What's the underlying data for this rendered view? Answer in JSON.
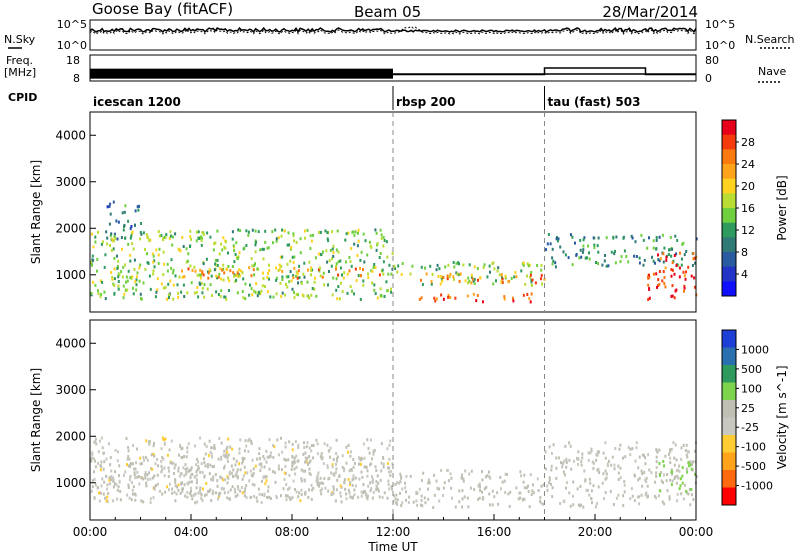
{
  "header": {
    "station": "Goose Bay (fitACF)",
    "beam": "Beam 05",
    "date": "28/Mar/2014"
  },
  "top_panels": {
    "nsky_label": "N.Sky",
    "nsky_ticks": [
      "10^5",
      "10^0"
    ],
    "nsearch_ticks": [
      "10^5",
      "10^0"
    ],
    "nsearch_label": "N.Search",
    "freq_label": "Freq.",
    "freq_unit": "[MHz]",
    "freq_ticks": [
      "18",
      "8"
    ],
    "nave_ticks": [
      "80",
      "0"
    ],
    "nave_label": "Nave",
    "cpid_label": "CPID",
    "cpid_modes": [
      {
        "label": "icescan 1200",
        "start_hour": 0
      },
      {
        "label": "rbsp 200",
        "start_hour": 12
      },
      {
        "label": "tau (fast) 503",
        "start_hour": 18
      }
    ]
  },
  "x_axis": {
    "title": "Time UT",
    "ticks": [
      "00:00",
      "04:00",
      "08:00",
      "12:00",
      "16:00",
      "20:00",
      "00:00"
    ],
    "tick_hours": [
      0,
      4,
      8,
      12,
      16,
      20,
      24
    ]
  },
  "y_axis": {
    "title": "Slant Range [km]",
    "ticks": [
      "1000",
      "2000",
      "3000",
      "4000"
    ],
    "tick_values": [
      1000,
      2000,
      3000,
      4000
    ],
    "range": [
      200,
      4500
    ]
  },
  "power_colorbar": {
    "title": "Power [dB]",
    "labels": [
      "28",
      "24",
      "20",
      "16",
      "12",
      "8",
      "4"
    ],
    "colors": [
      "#e8001a",
      "#f53a0c",
      "#fb7a10",
      "#ffa31a",
      "#ffd21f",
      "#b9dd33",
      "#6fcf3f",
      "#2e9a5e",
      "#2f7a74",
      "#2a5aa0",
      "#2233c8",
      "#1010ff"
    ]
  },
  "velocity_colorbar": {
    "title": "Velocity [m s^-1]",
    "labels": [
      "1000",
      "500",
      "100",
      "25",
      "-25",
      "-100",
      "-500",
      "-1000"
    ],
    "colors": [
      "#1d3fd6",
      "#2a6fae",
      "#2e9a5e",
      "#7dd34c",
      "#bfbfb3",
      "#c8c8c0",
      "#ffcc33",
      "#ffa31a",
      "#ff6a10",
      "#ff0000"
    ]
  },
  "chart_data": {
    "type": "heatmap",
    "title": "Goose Bay (fitACF)",
    "xlabel": "Time UT",
    "ylabel": "Slant Range [km]",
    "xlim_hours": [
      0,
      24
    ],
    "ylim_km": [
      200,
      4500
    ],
    "mode_boundaries_hours": [
      12,
      18
    ],
    "frequency_MHz": [
      {
        "start_hour": 0,
        "end_hour": 12,
        "value": 11.5
      },
      {
        "start_hour": 12,
        "end_hour": 24,
        "value": 10.3
      }
    ],
    "nave": [
      {
        "start_hour": 0,
        "end_hour": 12,
        "value": 20
      },
      {
        "start_hour": 12,
        "end_hour": 18,
        "value": 20
      },
      {
        "start_hour": 18,
        "end_hour": 22,
        "value": 40
      },
      {
        "start_hour": 22,
        "end_hour": 24,
        "value": 20
      }
    ],
    "power_panel": {
      "quantity": "Power [dB]",
      "scale_dB": [
        0,
        30
      ],
      "echo_regions": [
        {
          "t0": 0.0,
          "t1": 12.0,
          "r0": 500,
          "r1": 2000,
          "power_dB": 14
        },
        {
          "t0": 3.0,
          "t1": 11.5,
          "r0": 950,
          "r1": 1200,
          "power_dB": 22
        },
        {
          "t0": 0.5,
          "t1": 2.0,
          "r0": 1800,
          "r1": 2600,
          "power_dB": 8
        },
        {
          "t0": 12.0,
          "t1": 18.0,
          "r0": 800,
          "r1": 1300,
          "power_dB": 14
        },
        {
          "t0": 13.0,
          "t1": 18.0,
          "r0": 850,
          "r1": 1050,
          "power_dB": 24
        },
        {
          "t0": 13.0,
          "t1": 18.0,
          "r0": 450,
          "r1": 620,
          "power_dB": 26
        },
        {
          "t0": 18.0,
          "t1": 24.0,
          "r0": 1200,
          "r1": 1900,
          "power_dB": 10
        },
        {
          "t0": 22.0,
          "t1": 24.0,
          "r0": 500,
          "r1": 1500,
          "power_dB": 27
        }
      ]
    },
    "velocity_panel": {
      "quantity": "Velocity [m s^-1]",
      "scale_ms": [
        -1000,
        1000
      ],
      "echo_regions": [
        {
          "t0": 0.0,
          "t1": 12.0,
          "r0": 600,
          "r1": 2000,
          "velocity_ms": -100
        },
        {
          "t0": 0.0,
          "t1": 12.0,
          "r0": 700,
          "r1": 1600,
          "velocity_ms": 0
        },
        {
          "t0": 12.0,
          "t1": 18.0,
          "r0": 500,
          "r1": 1300,
          "velocity_ms": 0
        },
        {
          "t0": 18.0,
          "t1": 24.0,
          "r0": 500,
          "r1": 1900,
          "velocity_ms": 0
        },
        {
          "t0": 22.5,
          "t1": 24.0,
          "r0": 800,
          "r1": 1500,
          "velocity_ms": 300
        }
      ]
    }
  }
}
